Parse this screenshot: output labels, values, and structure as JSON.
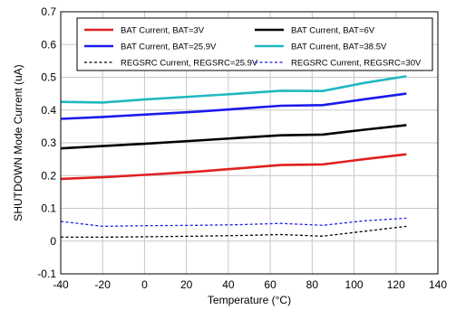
{
  "chart_data": {
    "type": "line",
    "xlabel": "Temperature (°C)",
    "ylabel": "SHUTDOWN Mode Current (uA)",
    "xlim": [
      -40,
      140
    ],
    "ylim": [
      -0.1,
      0.7
    ],
    "xticks": [
      -40,
      -20,
      0,
      20,
      40,
      60,
      80,
      100,
      120,
      140
    ],
    "xtick_labels": [
      "-40",
      "-20",
      "0",
      "20",
      "40",
      "60",
      "80",
      "100",
      "120",
      "140"
    ],
    "yticks": [
      -0.1,
      0,
      0.1,
      0.2,
      0.3,
      0.4,
      0.5,
      0.6,
      0.7
    ],
    "ytick_labels": [
      "-0.1",
      "0",
      "0.1",
      "0.2",
      "0.3",
      "0.4",
      "0.5",
      "0.6",
      "0.7"
    ],
    "grid": true,
    "legend_position": "top",
    "series": [
      {
        "name": "BAT Current, BAT=3V",
        "color": "#e02020",
        "style": "solid",
        "x": [
          -40,
          -20,
          0,
          25,
          45,
          65,
          85,
          105,
          125
        ],
        "y": [
          0.19,
          0.195,
          0.202,
          0.212,
          0.222,
          0.232,
          0.234,
          0.25,
          0.265
        ]
      },
      {
        "name": "BAT Current, BAT=6V",
        "color": "#000000",
        "style": "solid",
        "x": [
          -40,
          -20,
          0,
          25,
          45,
          65,
          85,
          105,
          125
        ],
        "y": [
          0.283,
          0.29,
          0.297,
          0.307,
          0.315,
          0.323,
          0.325,
          0.34,
          0.354
        ]
      },
      {
        "name": "BAT Current, BAT=25.9V",
        "color": "#1a1aee",
        "style": "solid",
        "x": [
          -40,
          -20,
          0,
          25,
          45,
          65,
          85,
          105,
          125
        ],
        "y": [
          0.373,
          0.379,
          0.386,
          0.395,
          0.404,
          0.413,
          0.415,
          0.433,
          0.45
        ]
      },
      {
        "name": "BAT Current, BAT=38.5V",
        "color": "#20b8c0",
        "style": "solid",
        "x": [
          -40,
          -20,
          0,
          25,
          45,
          65,
          85,
          105,
          125
        ],
        "y": [
          0.425,
          0.423,
          0.432,
          0.442,
          0.45,
          0.459,
          0.458,
          0.483,
          0.503
        ]
      },
      {
        "name": "REGSRC Current, REGSRC=25.9V",
        "color": "#000000",
        "style": "dashed",
        "x": [
          -40,
          -20,
          0,
          25,
          45,
          65,
          85,
          105,
          125
        ],
        "y": [
          0.012,
          0.012,
          0.013,
          0.015,
          0.017,
          0.02,
          0.015,
          0.03,
          0.045
        ]
      },
      {
        "name": "REGSRC Current, REGSRC=30V",
        "color": "#1a1aee",
        "style": "dashed",
        "x": [
          -40,
          -20,
          0,
          25,
          45,
          65,
          85,
          105,
          125
        ],
        "y": [
          0.06,
          0.045,
          0.047,
          0.048,
          0.05,
          0.054,
          0.048,
          0.062,
          0.07
        ]
      }
    ]
  }
}
